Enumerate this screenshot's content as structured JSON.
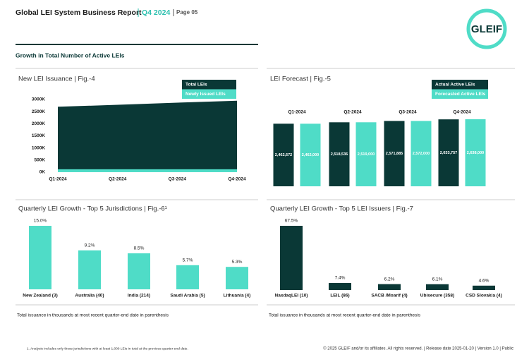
{
  "header": {
    "title": "Global LEI System Business Report",
    "period": "Q4 2024",
    "page": "Page 05",
    "logo": "GLEIF"
  },
  "section_title": "Growth in Total Number of Active LEIs",
  "chart_data": [
    {
      "type": "area",
      "title": "New LEI Issuance | Fig.-4",
      "categories": [
        "Q1-2024",
        "Q2-2024",
        "Q3-2024",
        "Q4-2024"
      ],
      "series": [
        {
          "name": "Total LEIs",
          "color": "#0a3836",
          "values": [
            2700000,
            2780000,
            2870000,
            2950000
          ]
        },
        {
          "name": "Newly Issued LEIs",
          "color": "#4fdcc7",
          "values": [
            120000,
            120000,
            120000,
            120000
          ]
        }
      ],
      "ylim": [
        0,
        3000000
      ],
      "yticks": [
        {
          "value": 0,
          "label": "0K"
        },
        {
          "value": 500000,
          "label": "500K"
        },
        {
          "value": 1000000,
          "label": "1000K"
        },
        {
          "value": 1500000,
          "label": "1500K"
        },
        {
          "value": 2000000,
          "label": "2000K"
        },
        {
          "value": 2500000,
          "label": "2500K"
        },
        {
          "value": 3000000,
          "label": "3000K"
        }
      ]
    },
    {
      "type": "bar",
      "title": "LEI Forecast | Fig.-5",
      "categories": [
        "Q1-2024",
        "Q2-2024",
        "Q3-2024",
        "Q4-2024"
      ],
      "series": [
        {
          "name": "Actual Active LEIs",
          "color": "#0a3836",
          "values": [
            2462672,
            2518536,
            2571885,
            2633757
          ],
          "value_labels": [
            "2,462,672",
            "2,518,536",
            "2,571,885",
            "2,633,757"
          ]
        },
        {
          "name": "Forecasted Active LEIs",
          "color": "#4fdcc7",
          "values": [
            2462000,
            2519000,
            2572000,
            2638000
          ],
          "value_labels": [
            "2,462,000",
            "2,519,000",
            "2,572,000",
            "2,638,000"
          ]
        }
      ]
    },
    {
      "type": "bar",
      "title": "Quarterly LEI Growth - Top 5 Jurisdictions | Fig.-6¹",
      "color": "#4fdcc7",
      "categories": [
        "New Zealand (3)",
        "Australia (40)",
        "India (214)",
        "Saudi Arabia (5)",
        "Lithuania (4)"
      ],
      "values": [
        15.0,
        9.2,
        8.5,
        5.7,
        5.3
      ],
      "value_labels": [
        "15.0%",
        "9.2%",
        "8.5%",
        "5.7%",
        "5.3%"
      ],
      "note": "Total issuance in thousands at most recent quarter-end date in parenthesis"
    },
    {
      "type": "bar",
      "title": "Quarterly LEI Growth - Top 5 LEI Issuers | Fig.-7",
      "color": "#0a3836",
      "categories": [
        "NasdaqLEI (10)",
        "LEIL (86)",
        "SACB /Moarif (4)",
        "Ubisecure (358)",
        "CSD Slovakia (4)"
      ],
      "values": [
        67.5,
        7.4,
        6.2,
        6.1,
        4.6
      ],
      "value_labels": [
        "67.5%",
        "7.4%",
        "6.2%",
        "6.1%",
        "4.6%"
      ],
      "note": "Total issuance in thousands at most recent quarter-end date in parenthesis"
    }
  ],
  "footnote": "1. Analysis includes only those jurisdictions with at least 1,000 LEIs in total at the previous quarter-end date.",
  "footer": "© 2025 GLEIF and/or its affiliates. All rights reserved. | Release date 2025-01-20 | Version 1.0 | Public"
}
